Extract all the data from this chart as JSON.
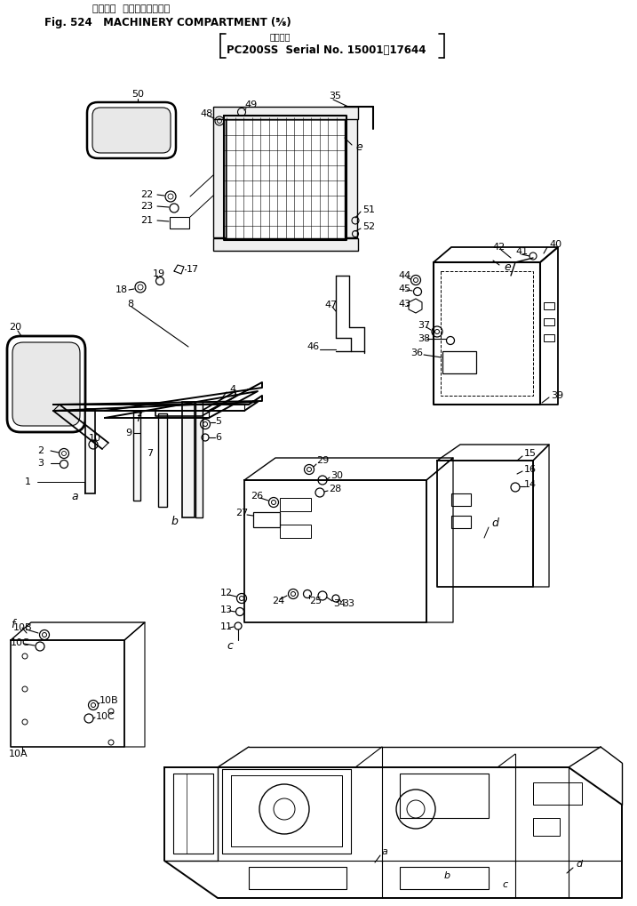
{
  "title_line1": "マシナリ  コンパートメント",
  "title_line2": "Fig. 524   MACHINERY COMPARTMENT (⅝)",
  "title_line3": "透用号機",
  "title_line4": "PC200SS  Serial No. 15001～17644",
  "background": "#ffffff",
  "line_color": "#000000",
  "text_color": "#000000",
  "figsize": [
    7.17,
    10.19
  ],
  "dpi": 100
}
